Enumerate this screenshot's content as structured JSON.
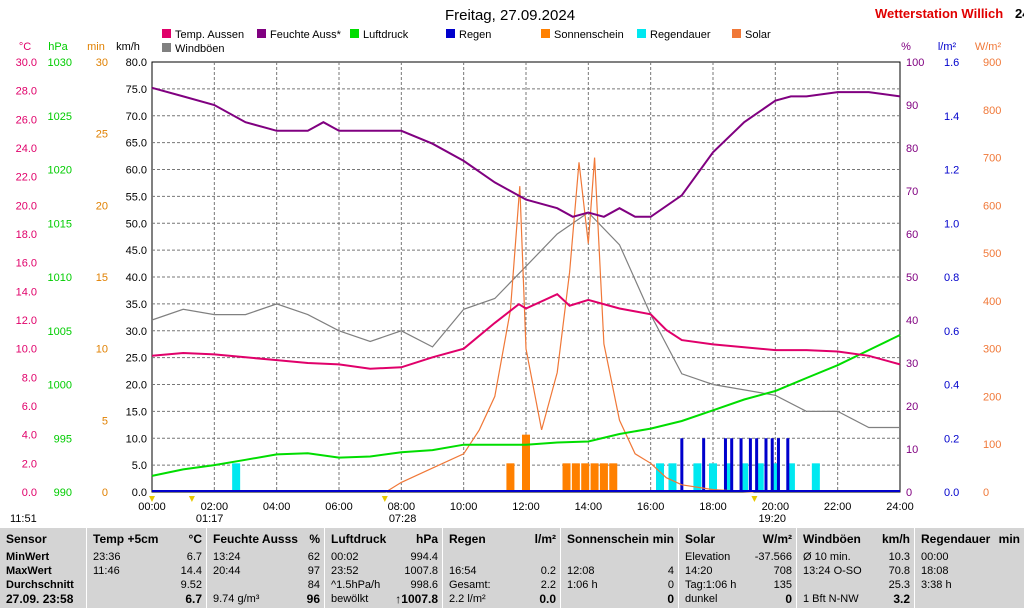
{
  "title": "Freitag, 27.09.2024",
  "station": "Wetterstation Willich",
  "station_extra": "24",
  "legend": [
    {
      "label": "Temp. Aussen",
      "color": "#e0006a"
    },
    {
      "label": "Feuchte Auss*",
      "color": "#800080"
    },
    {
      "label": "Luftdruck",
      "color": "#00dd00"
    },
    {
      "label": "Regen",
      "color": "#0000cc"
    },
    {
      "label": "Sonnenschein",
      "color": "#ff8000"
    },
    {
      "label": "Regendauer",
      "color": "#00e8f0"
    },
    {
      "label": "Solar",
      "color": "#f07838"
    },
    {
      "label": "Windböen",
      "color": "#808080"
    }
  ],
  "axes": {
    "temp": {
      "unit": "°C",
      "color": "#e0006a",
      "ticks": [
        "30.0",
        "28.0",
        "26.0",
        "24.0",
        "22.0",
        "20.0",
        "18.0",
        "16.0",
        "14.0",
        "12.0",
        "10.0",
        "8.0",
        "6.0",
        "4.0",
        "2.0",
        "0.0"
      ]
    },
    "pressure": {
      "unit": "hPa",
      "color": "#00cc00",
      "ticks": [
        "1030",
        "1025",
        "1020",
        "1015",
        "1010",
        "1005",
        "1000",
        "995",
        "990"
      ]
    },
    "sunmin": {
      "unit": "min",
      "color": "#e08000",
      "ticks": [
        "30",
        "25",
        "20",
        "15",
        "10",
        "5",
        "0"
      ]
    },
    "wind": {
      "unit": "km/h",
      "color": "#000000",
      "ticks": [
        "80.0",
        "75.0",
        "70.0",
        "65.0",
        "60.0",
        "55.0",
        "50.0",
        "45.0",
        "40.0",
        "35.0",
        "30.0",
        "25.0",
        "20.0",
        "15.0",
        "10.0",
        "5.0",
        "0.0"
      ]
    },
    "humidity": {
      "unit": "%",
      "color": "#800080",
      "ticks": [
        "100",
        "90",
        "80",
        "70",
        "60",
        "50",
        "40",
        "30",
        "20",
        "10",
        "0"
      ]
    },
    "rain": {
      "unit": "l/m²",
      "color": "#0000cc",
      "ticks": [
        "1.6",
        "1.4",
        "1.2",
        "1.0",
        "0.8",
        "0.6",
        "0.4",
        "0.2",
        "0.0"
      ]
    },
    "solar": {
      "unit": "W/m²",
      "color": "#f07838",
      "ticks": [
        "900",
        "800",
        "700",
        "600",
        "500",
        "400",
        "300",
        "200",
        "100",
        "0"
      ]
    }
  },
  "x_ticks": [
    "00:00",
    "02:00",
    "04:00",
    "06:00",
    "08:00",
    "10:00",
    "12:00",
    "14:00",
    "16:00",
    "18:00",
    "20:00",
    "22:00",
    "24:00"
  ],
  "markers": [
    {
      "label": "11:51",
      "hour": 0.0
    },
    {
      "label": "01:17",
      "hour": 1.28
    },
    {
      "label": "07:28",
      "hour": 7.47
    },
    {
      "label": "19:20",
      "hour": 19.33
    }
  ],
  "chart_data": {
    "type": "line",
    "x_unit": "hour of day",
    "xlim": [
      0,
      24
    ],
    "series": [
      {
        "name": "Temp. Aussen",
        "unit": "°C",
        "color": "#e0006a",
        "x": [
          0,
          1,
          2,
          3,
          4,
          5,
          6,
          7,
          8,
          9,
          10,
          11,
          11.77,
          12,
          13,
          13.4,
          14,
          15,
          15.5,
          16,
          16.5,
          17,
          18,
          19,
          20,
          21,
          22,
          23,
          24
        ],
        "y": [
          9.5,
          9.7,
          9.6,
          9.4,
          9.2,
          9.0,
          8.9,
          8.6,
          8.7,
          9.4,
          10.0,
          11.8,
          13.1,
          12.8,
          13.8,
          13.0,
          13.4,
          12.8,
          12.6,
          12.4,
          11.3,
          10.6,
          10.3,
          10.1,
          9.9,
          9.9,
          9.8,
          9.5,
          8.9
        ]
      },
      {
        "name": "Feuchte Auss*",
        "unit": "%",
        "color": "#800080",
        "x": [
          0,
          1,
          2,
          3,
          4,
          5,
          5.5,
          6,
          7,
          8,
          9,
          10,
          11,
          11.5,
          12,
          13,
          13.5,
          14,
          14.5,
          15,
          15.5,
          16,
          17,
          18,
          19,
          20,
          20.5,
          21,
          22,
          23,
          24
        ],
        "y": [
          94,
          92,
          90,
          86,
          84,
          84,
          86,
          84,
          84,
          84,
          81,
          77,
          72,
          70,
          68,
          66,
          64,
          65,
          64,
          66,
          64,
          64,
          69,
          79,
          86,
          91,
          92,
          92,
          93,
          93,
          92
        ]
      },
      {
        "name": "Luftdruck",
        "unit": "hPa",
        "color": "#00dd00",
        "x": [
          0,
          1,
          2,
          3,
          4,
          5,
          6,
          7,
          8,
          9,
          10,
          11,
          12,
          13,
          14,
          15,
          16,
          17,
          18,
          19,
          20,
          21,
          22,
          23,
          24
        ],
        "y": [
          991.5,
          992.1,
          992.5,
          993.0,
          993.5,
          993.6,
          993.2,
          993.3,
          993.7,
          993.9,
          994.4,
          994.4,
          994.4,
          994.6,
          994.7,
          995.4,
          995.9,
          996.6,
          997.6,
          998.6,
          999.4,
          1000.6,
          1001.8,
          1003.2,
          1004.6
        ]
      },
      {
        "name": "Windböen",
        "unit": "km/h",
        "color": "#808080",
        "x": [
          0,
          1,
          2,
          3,
          4,
          5,
          6,
          7,
          8,
          9,
          10,
          11,
          12,
          13,
          14,
          15,
          16,
          17,
          18,
          19,
          20,
          21,
          22,
          23,
          24
        ],
        "y": [
          32,
          34,
          33,
          33,
          35,
          33,
          30,
          28,
          30,
          27,
          34,
          36,
          42,
          48,
          52,
          46,
          33,
          22,
          20,
          19,
          18,
          15,
          15,
          12,
          12
        ]
      },
      {
        "name": "Solar",
        "unit": "W/m²",
        "color": "#f07838",
        "x": [
          7.5,
          8,
          9,
          10,
          10.5,
          11,
          11.5,
          11.8,
          12,
          12.5,
          13,
          13.4,
          13.7,
          14,
          14.2,
          14.5,
          15,
          15.5,
          16,
          16.5,
          17,
          18,
          19.3
        ],
        "y": [
          0,
          20,
          50,
          80,
          130,
          200,
          380,
          640,
          300,
          130,
          250,
          460,
          690,
          520,
          700,
          310,
          150,
          80,
          60,
          30,
          15,
          5,
          0
        ]
      }
    ],
    "bars": [
      {
        "name": "Sonnenschein",
        "unit": "min",
        "color": "#ff8000",
        "x": [
          11.5,
          12,
          13.3,
          13.6,
          13.9,
          14.2,
          14.5,
          14.8
        ],
        "y": [
          2,
          4,
          2,
          2,
          2,
          2,
          2,
          2
        ]
      },
      {
        "name": "Regendauer",
        "unit": "min",
        "color": "#00e8f0",
        "x": [
          2.7,
          16.3,
          16.7,
          17.5,
          18.0,
          18.5,
          19.0,
          19.5,
          20.0,
          20.5,
          21.3
        ],
        "y": [
          2,
          2,
          2,
          2,
          2,
          2,
          2,
          2,
          2,
          2,
          2
        ]
      },
      {
        "name": "Regen",
        "unit": "l/m²",
        "color": "#0000cc",
        "x": [
          17.0,
          17.7,
          18.4,
          18.6,
          18.9,
          19.2,
          19.4,
          19.7,
          19.9,
          20.1,
          20.4
        ],
        "y": [
          0.2,
          0.2,
          0.2,
          0.2,
          0.2,
          0.2,
          0.2,
          0.2,
          0.2,
          0.2,
          0.2
        ]
      }
    ],
    "grid": true
  },
  "table": {
    "sensor": {
      "header": "Sensor",
      "rows": [
        "MinWert",
        "MaxWert",
        "Durchschnitt",
        "27.09. 23:58"
      ]
    },
    "temp": {
      "header": "Temp +5cm",
      "unit": "°C",
      "rows": [
        [
          "23:36",
          "6.7"
        ],
        [
          "11:46",
          "14.4"
        ],
        [
          "",
          "9.52"
        ],
        [
          "",
          "6.7"
        ]
      ]
    },
    "feuchte": {
      "header": "Feuchte Ausss",
      "unit": "%",
      "rows": [
        [
          "13:24",
          "62"
        ],
        [
          "20:44",
          "97"
        ],
        [
          "",
          "84"
        ],
        [
          "9.74 g/m³",
          "96"
        ]
      ]
    },
    "luftdruck": {
      "header": "Luftdruck",
      "unit": "hPa",
      "rows": [
        [
          "00:02",
          "994.4"
        ],
        [
          "23:52",
          "1007.8"
        ],
        [
          "^1.5hPa/h",
          "998.6"
        ],
        [
          "bewölkt",
          "↑1007.8"
        ]
      ]
    },
    "regen": {
      "header": "Regen",
      "unit": "l/m²",
      "rows": [
        [
          "",
          ""
        ],
        [
          "16:54",
          "0.2"
        ],
        [
          "Gesamt:",
          "2.2"
        ],
        [
          "2.2 l/m²",
          "0.0"
        ]
      ]
    },
    "sonne": {
      "header": "Sonnenschein",
      "unit": "min",
      "rows": [
        [
          "",
          ""
        ],
        [
          "12:08",
          "4"
        ],
        [
          "1:06 h",
          "0"
        ],
        [
          "",
          "0"
        ]
      ]
    },
    "solar": {
      "header": "Solar",
      "unit": "W/m²",
      "rows": [
        [
          "Elevation",
          "-37.566"
        ],
        [
          "14:20",
          "708"
        ],
        [
          "Tag:1:06 h",
          "135"
        ],
        [
          "dunkel",
          "0"
        ]
      ]
    },
    "wind": {
      "header": "Windböen",
      "unit": "km/h",
      "rows": [
        [
          "Ø 10 min.",
          "10.3"
        ],
        [
          "13:24   O-SO",
          "70.8"
        ],
        [
          "",
          "25.3"
        ],
        [
          "1 Bft N-NW",
          "3.2"
        ]
      ]
    },
    "regendauer": {
      "header": "Regendauer",
      "unit": "min",
      "rows": [
        [
          "00:00",
          ""
        ],
        [
          "18:08",
          ""
        ],
        [
          "3:38 h",
          ""
        ],
        [
          "",
          ""
        ]
      ]
    }
  }
}
